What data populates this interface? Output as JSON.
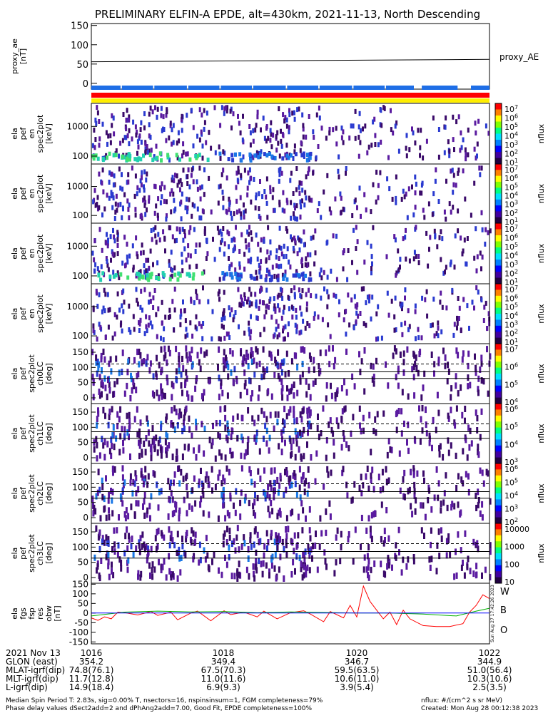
{
  "title": "PRELIMINARY ELFIN-A EPDE, alt=430km, 2021-11-13, North Descending",
  "colors": {
    "line": "#000000",
    "red": "#ff0000",
    "green": "#00b000",
    "blue": "#0000ff",
    "cover_blue": "#1e6ee6",
    "cover_red": "#ff0000",
    "cover_yellow": "#ffee00"
  },
  "chart_data": [
    {
      "type": "line",
      "name": "proxy_ae",
      "ylabel_lines": [
        "proxy_ae",
        "[nT]"
      ],
      "legend": "proxy_AE",
      "yticks": [
        "150",
        "100",
        "50",
        "0"
      ],
      "ylim": [
        -15,
        155
      ],
      "x": [
        0,
        6
      ],
      "values": [
        56,
        62
      ]
    },
    {
      "type": "heatmap",
      "name": "ela pef en spec2plot",
      "ylabel_lines": [
        "ela",
        "pef",
        "en",
        "spec2plot",
        "[keV]"
      ],
      "yticks": [
        "1000",
        "100"
      ],
      "colorbar_label": "nflux",
      "colorbar_ticks": [
        "10^7",
        "10^6",
        "10^5",
        "10^4",
        "10^3",
        "10^2",
        "10^1"
      ]
    },
    {
      "type": "heatmap",
      "name": "ela pef en spec2plot",
      "ylabel_lines": [
        "ela",
        "pef",
        "en",
        "spec2plot",
        "[keV]"
      ],
      "yticks": [
        "1000",
        "100"
      ],
      "colorbar_label": "nflux",
      "colorbar_ticks": [
        "10^7",
        "10^6",
        "10^5",
        "10^4",
        "10^3",
        "10^2",
        "10^1"
      ]
    },
    {
      "type": "heatmap",
      "name": "ela pef en spec2plot",
      "ylabel_lines": [
        "ela",
        "pef",
        "en",
        "spec2plot",
        "[keV]"
      ],
      "yticks": [
        "1000",
        "100"
      ],
      "colorbar_label": "nflux",
      "colorbar_ticks": [
        "10^7",
        "10^6",
        "10^5",
        "10^4",
        "10^3",
        "10^2",
        "10^1"
      ]
    },
    {
      "type": "heatmap",
      "name": "ela pef en spec2plot",
      "ylabel_lines": [
        "ela",
        "pef",
        "en",
        "spec2plot",
        "[keV]"
      ],
      "yticks": [
        "1000",
        "100"
      ],
      "colorbar_label": "nflux",
      "colorbar_ticks": [
        "10^7",
        "10^6",
        "10^5",
        "10^4",
        "10^3",
        "10^2",
        "10^1"
      ]
    },
    {
      "type": "heatmap",
      "name": "ela pef spec2plot ch0LC",
      "ylabel_lines": [
        "ela",
        "pef",
        "spec2plot",
        "ch0LC",
        "[deg]"
      ],
      "yticks": [
        "150",
        "100",
        "50",
        "0"
      ],
      "colorbar_label": "nflux",
      "colorbar_ticks": [
        "10^7",
        "10^6",
        "10^5",
        "10^4"
      ]
    },
    {
      "type": "heatmap",
      "name": "ela pef spec2plot ch1LC",
      "ylabel_lines": [
        "ela",
        "pef",
        "spec2plot",
        "ch1LC",
        "[deg]"
      ],
      "yticks": [
        "150",
        "100",
        "50",
        "0"
      ],
      "colorbar_label": "nflux",
      "colorbar_ticks": [
        "10^6",
        "10^5",
        "10^4",
        "10^3"
      ]
    },
    {
      "type": "heatmap",
      "name": "ela pef spec2plot ch2LC",
      "ylabel_lines": [
        "ela",
        "pef",
        "spec2plot",
        "ch2LC",
        "[deg]"
      ],
      "yticks": [
        "150",
        "100",
        "50",
        "0"
      ],
      "colorbar_label": "nflux",
      "colorbar_ticks": [
        "10^6",
        "10^5",
        "10^4",
        "10^3",
        "10^2"
      ]
    },
    {
      "type": "heatmap",
      "name": "ela pef spec2plot ch3LC",
      "ylabel_lines": [
        "ela",
        "pef",
        "spec2plot",
        "ch3LC",
        "[deg]"
      ],
      "yticks": [
        "150",
        "100",
        "50",
        "0"
      ],
      "colorbar_label": "nflux",
      "colorbar_ticks": [
        "10000",
        "1000",
        "100",
        "10"
      ]
    },
    {
      "type": "line",
      "name": "ela fgs fsp res obw",
      "ylabel_lines": [
        "ela",
        "fgs",
        "fsp",
        "res",
        "obw",
        "[nT]"
      ],
      "yticks": [
        "150",
        "100",
        "50",
        "0",
        "-50",
        "-100",
        "-150"
      ],
      "ylim": [
        -160,
        155
      ],
      "legend": [
        "W",
        "B",
        "O"
      ],
      "side_note": "Sun Aug 27 17:42:26 2023",
      "series": [
        {
          "name": "W",
          "x": [
            0.0,
            0.1,
            0.2,
            0.3,
            0.4,
            0.5,
            0.7,
            0.9,
            1.0,
            1.2,
            1.3,
            1.5,
            1.6,
            1.8,
            2.0,
            2.1,
            2.3,
            2.5,
            2.6,
            2.8,
            3.0,
            3.2,
            3.3,
            3.5,
            3.6,
            3.8,
            3.9,
            4.0,
            4.1,
            4.2,
            4.3,
            4.4,
            4.5,
            4.6,
            4.7,
            4.8,
            5.0,
            5.2,
            5.4,
            5.6,
            5.7,
            5.8,
            5.9,
            6.0
          ],
          "values": [
            -25,
            -38,
            -20,
            -30,
            5,
            2,
            -10,
            8,
            -12,
            5,
            -35,
            0,
            10,
            -40,
            12,
            -8,
            5,
            -20,
            10,
            -30,
            2,
            12,
            -5,
            -45,
            8,
            -25,
            40,
            -20,
            140,
            60,
            15,
            -30,
            5,
            -60,
            15,
            -30,
            -65,
            -70,
            -70,
            -55,
            5,
            40,
            95,
            75
          ]
        },
        {
          "name": "B",
          "x": [
            0.0,
            0.5,
            1.0,
            1.5,
            2.0,
            2.5,
            3.0,
            3.5,
            4.0,
            4.5,
            5.0,
            5.5,
            5.8,
            6.0
          ],
          "values": [
            -15,
            5,
            10,
            6,
            8,
            2,
            6,
            3,
            0,
            0,
            -5,
            -15,
            10,
            25
          ]
        },
        {
          "name": "O",
          "x": [
            0.0,
            1.0,
            2.0,
            3.0,
            4.0,
            5.0,
            6.0
          ],
          "values": [
            0,
            0,
            0,
            0,
            0,
            0,
            0
          ]
        }
      ]
    }
  ],
  "footer": {
    "rows": [
      {
        "label": "2021 Nov 13",
        "values": [
          "1016",
          "1018",
          "1020",
          "1022"
        ]
      },
      {
        "label": "GLON (east)",
        "values": [
          "354.2",
          "349.4",
          "346.7",
          "344.9"
        ]
      },
      {
        "label": "MLAT-igrf(dip)",
        "values": [
          "74.8(76.1)",
          "67.5(70.3)",
          "59.5(63.5)",
          "51.0(56.4)"
        ]
      },
      {
        "label": "MLT-igrf(dip)",
        "values": [
          "11.7(12.8)",
          "11.0(11.6)",
          "10.6(11.0)",
          "10.3(10.6)"
        ]
      },
      {
        "label": "L-igrf(dip)",
        "values": [
          "14.9(18.4)",
          "6.9(9.3)",
          "3.9(5.4)",
          "2.5(3.5)"
        ]
      }
    ],
    "note1": "Median Spin Period T: 2.83s, sig=0.00% T, nsectors=16, nspinsinsum=1, FGM completeness=79%",
    "note2": "Phase delay values dSect2add=2 and dPhAng2add=7.00, Good Fit, EPDE completeness=100%",
    "units": "nflux: #/(cm^2 s sr MeV)",
    "created": "Created: Mon Aug 28 00:12:38 2023"
  }
}
